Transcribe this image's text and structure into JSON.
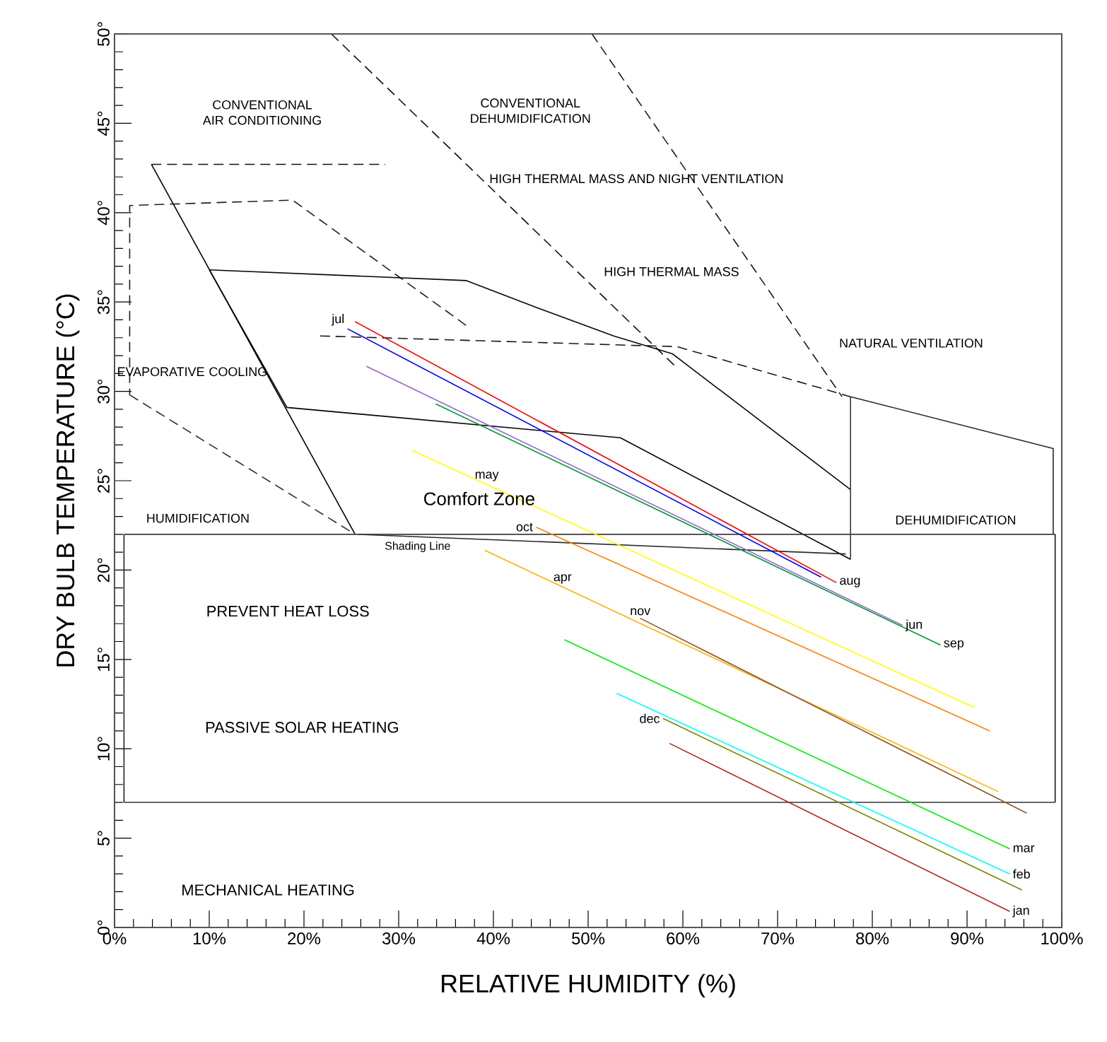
{
  "chart_data": {
    "type": "line",
    "xlabel": "RELATIVE HUMIDITY (%)",
    "ylabel": "DRY BULB TEMPERATURE (°C)",
    "xlim": [
      0,
      100
    ],
    "ylim": [
      0,
      50
    ],
    "xticks": [
      {
        "value": 0,
        "label": "0%"
      },
      {
        "value": 10,
        "label": "10%"
      },
      {
        "value": 20,
        "label": "20%"
      },
      {
        "value": 30,
        "label": "30%"
      },
      {
        "value": 40,
        "label": "40%"
      },
      {
        "value": 50,
        "label": "50%"
      },
      {
        "value": 60,
        "label": "60%"
      },
      {
        "value": 70,
        "label": "70%"
      },
      {
        "value": 80,
        "label": "80%"
      },
      {
        "value": 90,
        "label": "90%"
      },
      {
        "value": 100,
        "label": "100%"
      }
    ],
    "yticks": [
      {
        "value": 0,
        "label": "0°"
      },
      {
        "value": 5,
        "label": "5°"
      },
      {
        "value": 10,
        "label": "10°"
      },
      {
        "value": 15,
        "label": "15°"
      },
      {
        "value": 20,
        "label": "20°"
      },
      {
        "value": 25,
        "label": "25°"
      },
      {
        "value": 30,
        "label": "30°"
      },
      {
        "value": 35,
        "label": "35°"
      },
      {
        "value": 40,
        "label": "40°"
      },
      {
        "value": 45,
        "label": "45°"
      },
      {
        "value": 50,
        "label": "50°"
      }
    ],
    "grid": false,
    "marker": "none",
    "series": [
      {
        "color": "#000000",
        "line_style": "solid",
        "x": [
          3.9,
          25.4
        ],
        "values": [
          42.7,
          22.0
        ]
      },
      {
        "color": "#101010",
        "line_style": "dashed",
        "x": [
          3.9,
          28.6
        ],
        "values": [
          42.7,
          42.7
        ]
      },
      {
        "color": "#202020",
        "line_style": "dashed",
        "x": [
          37.1,
          18.8,
          1.6,
          1.6
        ],
        "values": [
          33.7,
          40.7,
          40.4,
          29.8
        ]
      },
      {
        "color": "#303030",
        "line_style": "dashed",
        "x": [
          1.6,
          25.4
        ],
        "values": [
          29.8,
          22.0
        ]
      },
      {
        "color": "#080808",
        "line_style": "solid",
        "x": [
          10.0,
          37.1,
          44.5,
          52.7,
          58.9,
          77.7
        ],
        "values": [
          36.8,
          36.2,
          34.7,
          33.1,
          32.1,
          24.5
        ]
      },
      {
        "color": "#040404",
        "line_style": "solid",
        "x": [
          10.0,
          18.2,
          53.4,
          77.7
        ],
        "values": [
          36.8,
          29.1,
          27.4,
          20.6
        ]
      },
      {
        "color": "#181818",
        "line_style": "dashed",
        "x": [
          21.7,
          59.4,
          77.7
        ],
        "values": [
          33.1,
          32.5,
          29.7
        ]
      },
      {
        "color": "#282828",
        "line_style": "solid",
        "x": [
          77.7,
          99.1,
          99.1
        ],
        "values": [
          29.7,
          26.8,
          22.0
        ]
      },
      {
        "color": "#383838",
        "line_style": "solid",
        "x": [
          77.7,
          77.7
        ],
        "values": [
          29.7,
          20.6
        ]
      },
      {
        "color": "#0c0c0c",
        "line_style": "dashed",
        "x": [
          22.9,
          59.4
        ],
        "values": [
          50.0,
          31.3
        ]
      },
      {
        "color": "#1c1c1c",
        "line_style": "dashed",
        "x": [
          50.4,
          76.8
        ],
        "values": [
          50.0,
          29.7
        ]
      },
      {
        "color": "#2c2c2c",
        "line_style": "solid",
        "x": [
          25.6,
          77.2
        ],
        "values": [
          22.0,
          20.9
        ]
      },
      {
        "color": "#3c3c3c",
        "line_style": "solid",
        "x": [
          1.0,
          99.3
        ],
        "values": [
          22.0,
          22.0
        ]
      },
      {
        "color": "#343434",
        "line_style": "solid",
        "x": [
          1.0,
          99.3
        ],
        "values": [
          7.0,
          7.0
        ]
      },
      {
        "color": "#242424",
        "line_style": "solid",
        "x": [
          1.0,
          1.0
        ],
        "values": [
          22.0,
          7.0
        ]
      },
      {
        "color": "#141414",
        "line_style": "solid",
        "x": [
          99.3,
          99.3
        ],
        "values": [
          22.0,
          7.0
        ]
      },
      {
        "color": "#0000ff",
        "x": [
          24.6,
          74.6
        ],
        "values": [
          33.5,
          19.6
        ]
      },
      {
        "color": "#ff0000",
        "x": [
          25.4,
          76.2
        ],
        "values": [
          33.9,
          19.3
        ]
      },
      {
        "color": "#9966cc",
        "x": [
          26.6,
          83.2
        ],
        "values": [
          31.4,
          16.9
        ]
      },
      {
        "color": "#009933",
        "x": [
          33.9,
          87.2
        ],
        "values": [
          29.3,
          15.8
        ]
      },
      {
        "color": "#ffff00",
        "x": [
          31.4,
          90.8
        ],
        "values": [
          26.7,
          12.3
        ]
      },
      {
        "color": "#ff8000",
        "x": [
          44.5,
          92.4
        ],
        "values": [
          22.4,
          11.0
        ]
      },
      {
        "color": "#ffb000",
        "x": [
          39.1,
          93.3
        ],
        "values": [
          21.1,
          7.6
        ]
      },
      {
        "color": "#8b5a2b",
        "x": [
          55.5,
          96.3
        ],
        "values": [
          17.3,
          6.4
        ]
      },
      {
        "color": "#00ee00",
        "x": [
          47.5,
          94.5
        ],
        "values": [
          16.1,
          4.4
        ]
      },
      {
        "color": "#00ffff",
        "x": [
          53.0,
          94.5
        ],
        "values": [
          13.1,
          3.0
        ]
      },
      {
        "color": "#808000",
        "x": [
          57.9,
          95.8
        ],
        "values": [
          11.7,
          2.1
        ]
      },
      {
        "color": "#b22222",
        "x": [
          58.6,
          94.5
        ],
        "values": [
          10.3,
          0.9
        ]
      }
    ],
    "annotations": [
      "CONVENTIONAL AIR CONDITIONING",
      "CONVENTIONAL DEHUMIDIFICATION",
      "HIGH THERMAL MASS AND NIGHT VENTILATION",
      "HIGH THERMAL MASS",
      "NATURAL VENTILATION",
      "EVAPORATIVE COOLING",
      "Comfort Zone",
      "HUMIDIFICATION",
      "DEHUMIDIFICATION",
      "Shading Line",
      "PREVENT HEAT LOSS",
      "PASSIVE SOLAR HEATING",
      "MECHANICAL HEATING",
      {
        "text": "jul",
        "x": 24.6,
        "y": 33.5
      },
      {
        "text": "aug",
        "x": 76.2,
        "y": 19.3
      },
      {
        "text": "jun",
        "x": 83.2,
        "y": 16.9
      },
      {
        "text": "sep",
        "x": 87.2,
        "y": 15.8
      },
      {
        "text": "may",
        "x": 39.3,
        "y": 24.8
      },
      {
        "text": "oct",
        "x": 44.5,
        "y": 22.4
      },
      {
        "text": "apr",
        "x": 47.3,
        "y": 19.06
      },
      {
        "text": "nov",
        "x": 55.5,
        "y": 17.3
      },
      {
        "text": "dec",
        "x": 57.9,
        "y": 11.7
      },
      {
        "text": "mar",
        "x": 94.5,
        "y": 4.4
      },
      {
        "text": "feb",
        "x": 94.5,
        "y": 3.0
      },
      {
        "text": "jan",
        "x": 94.5,
        "y": 0.9
      }
    ]
  }
}
